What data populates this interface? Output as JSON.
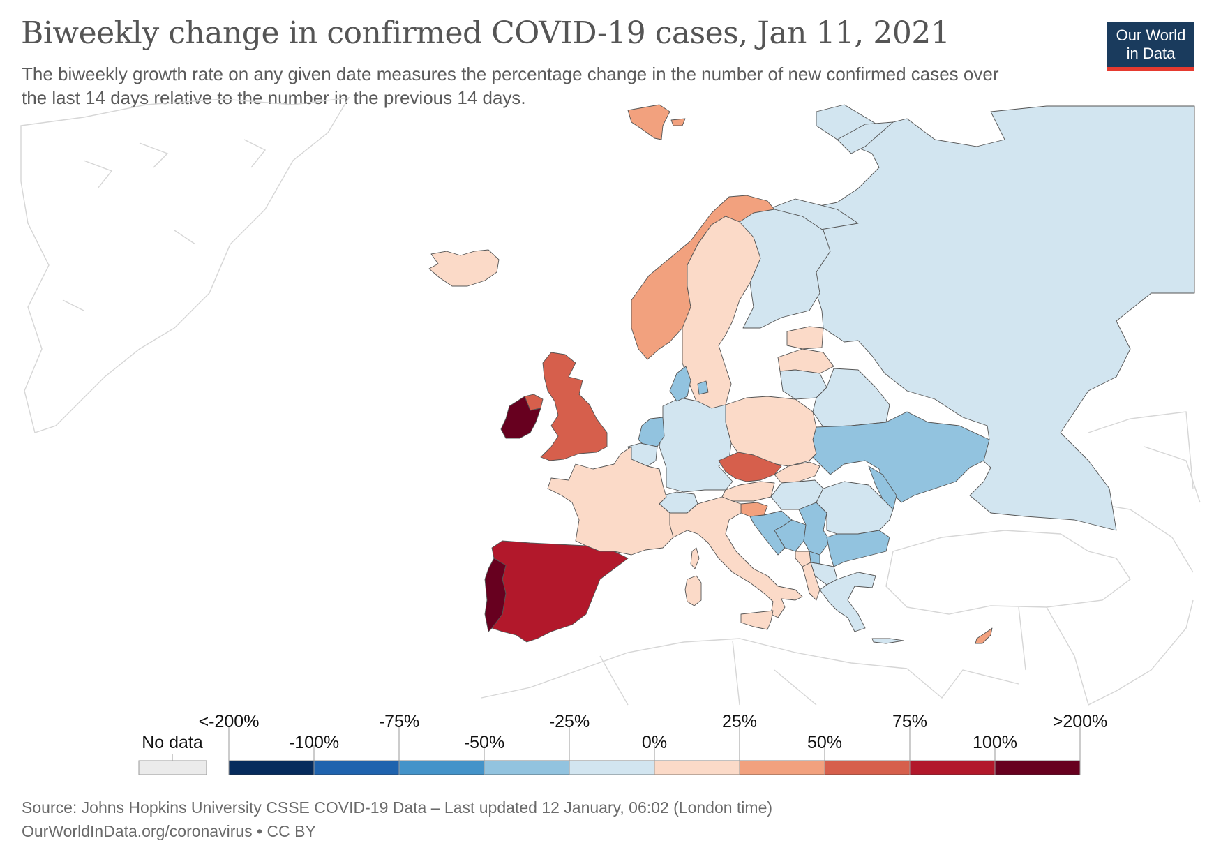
{
  "header": {
    "title": "Biweekly change in confirmed COVID-19 cases, Jan 11, 2021",
    "subtitle": "The biweekly growth rate on any given date measures the percentage change in the number of new confirmed cases over the last 14 days relative to the number in the previous 14 days.",
    "logo_line1": "Our World",
    "logo_line2": "in Data"
  },
  "legend": {
    "no_data_label": "No data",
    "no_data_color": "#ebebeb",
    "bins": [
      {
        "color": "#062b5c"
      },
      {
        "color": "#1f63ae"
      },
      {
        "color": "#4493c9"
      },
      {
        "color": "#92c3df"
      },
      {
        "color": "#d2e5f0"
      },
      {
        "color": "#fbdac8"
      },
      {
        "color": "#f2a17e"
      },
      {
        "color": "#d65f4c"
      },
      {
        "color": "#b2182b"
      },
      {
        "color": "#67001f"
      }
    ],
    "tick_labels_top": [
      "<-200%",
      "-75%",
      "-25%",
      "25%",
      "75%",
      ">200%"
    ],
    "tick_labels_bottom": [
      "-100%",
      "-50%",
      "0%",
      "50%",
      "100%"
    ]
  },
  "map_data": {
    "type": "choropleth",
    "region": "Europe",
    "date": "Jan 11, 2021",
    "countries": [
      {
        "name": "Ireland",
        "bin": 9
      },
      {
        "name": "Portugal",
        "bin": 9
      },
      {
        "name": "Spain",
        "bin": 8
      },
      {
        "name": "United Kingdom",
        "bin": 7
      },
      {
        "name": "Czechia",
        "bin": 7
      },
      {
        "name": "Northern Ireland",
        "bin": 7
      },
      {
        "name": "Norway",
        "bin": 6
      },
      {
        "name": "Slovenia",
        "bin": 6
      },
      {
        "name": "Cyprus",
        "bin": 6
      },
      {
        "name": "Svalbard",
        "bin": 6
      },
      {
        "name": "Iceland",
        "bin": 5
      },
      {
        "name": "Sweden",
        "bin": 5
      },
      {
        "name": "France",
        "bin": 5
      },
      {
        "name": "Italy",
        "bin": 5
      },
      {
        "name": "Poland",
        "bin": 5
      },
      {
        "name": "Estonia",
        "bin": 5
      },
      {
        "name": "Latvia",
        "bin": 5
      },
      {
        "name": "Austria",
        "bin": 5
      },
      {
        "name": "Slovakia",
        "bin": 5
      },
      {
        "name": "Albania",
        "bin": 5
      },
      {
        "name": "Montenegro",
        "bin": 5
      },
      {
        "name": "Corsica",
        "bin": 5
      },
      {
        "name": "Sardinia",
        "bin": 5
      },
      {
        "name": "Sicily",
        "bin": 5
      },
      {
        "name": "Switzerland",
        "bin": 4
      },
      {
        "name": "Germany",
        "bin": 4
      },
      {
        "name": "Finland",
        "bin": 4
      },
      {
        "name": "Russia",
        "bin": 4
      },
      {
        "name": "Lithuania",
        "bin": 4
      },
      {
        "name": "Belarus",
        "bin": 4
      },
      {
        "name": "Hungary",
        "bin": 4
      },
      {
        "name": "Romania",
        "bin": 4
      },
      {
        "name": "Greece",
        "bin": 4
      },
      {
        "name": "Crete",
        "bin": 4
      },
      {
        "name": "Belgium",
        "bin": 4
      },
      {
        "name": "North Macedonia",
        "bin": 4
      },
      {
        "name": "Netherlands",
        "bin": 3
      },
      {
        "name": "Denmark",
        "bin": 3
      },
      {
        "name": "Ukraine",
        "bin": 3
      },
      {
        "name": "Moldova",
        "bin": 3
      },
      {
        "name": "Croatia",
        "bin": 3
      },
      {
        "name": "Bosnia and Herzegovina",
        "bin": 3
      },
      {
        "name": "Serbia",
        "bin": 3
      },
      {
        "name": "Bulgaria",
        "bin": 3
      },
      {
        "name": "Kosovo",
        "bin": 3
      }
    ]
  },
  "footer": {
    "source": "Source: Johns Hopkins University CSSE COVID-19 Data – Last updated 12 January, 06:02 (London time)",
    "license": "OurWorldInData.org/coronavirus • CC BY"
  }
}
